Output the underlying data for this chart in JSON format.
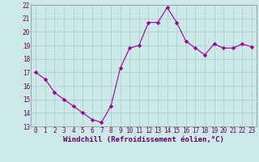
{
  "x": [
    0,
    1,
    2,
    3,
    4,
    5,
    6,
    7,
    8,
    9,
    10,
    11,
    12,
    13,
    14,
    15,
    16,
    17,
    18,
    19,
    20,
    21,
    22,
    23
  ],
  "y": [
    17.0,
    16.5,
    15.5,
    15.0,
    14.5,
    14.0,
    13.5,
    13.3,
    14.5,
    17.3,
    18.8,
    19.0,
    20.7,
    20.7,
    21.8,
    20.7,
    19.3,
    18.8,
    18.3,
    19.1,
    18.8,
    18.8,
    19.1,
    18.9
  ],
  "line_color": "#990099",
  "marker": "D",
  "marker_size": 2.2,
  "bg_color": "#cce8e8",
  "grid_color": "#aacccc",
  "xlabel": "Windchill (Refroidissement éolien,°C)",
  "ylim": [
    13,
    22
  ],
  "xlim_min": -0.5,
  "xlim_max": 23.5,
  "yticks": [
    13,
    14,
    15,
    16,
    17,
    18,
    19,
    20,
    21,
    22
  ],
  "xticks": [
    0,
    1,
    2,
    3,
    4,
    5,
    6,
    7,
    8,
    9,
    10,
    11,
    12,
    13,
    14,
    15,
    16,
    17,
    18,
    19,
    20,
    21,
    22,
    23
  ],
  "tick_fontsize": 5.5,
  "xlabel_fontsize": 6.5,
  "xlabel_color": "#660066"
}
